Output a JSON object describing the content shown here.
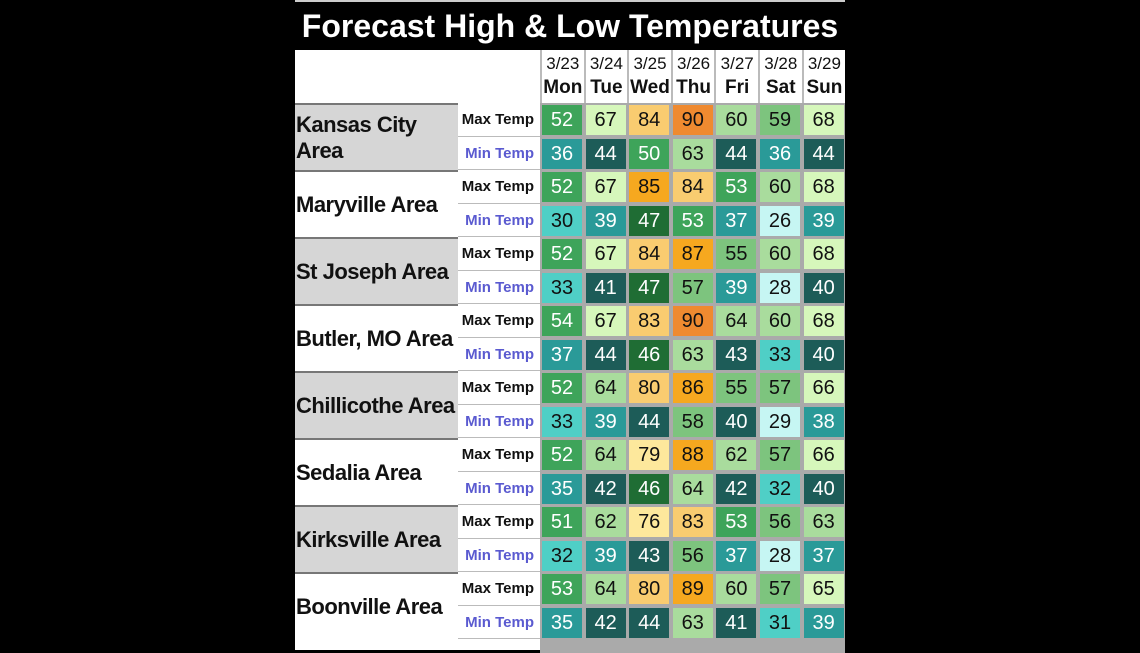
{
  "chart_data": {
    "type": "heatmap",
    "title": "Forecast High & Low Temperatures",
    "columns": [
      {
        "date": "3/23",
        "day": "Mon"
      },
      {
        "date": "3/24",
        "day": "Tue"
      },
      {
        "date": "3/25",
        "day": "Wed"
      },
      {
        "date": "3/26",
        "day": "Thu"
      },
      {
        "date": "3/27",
        "day": "Fri"
      },
      {
        "date": "3/28",
        "day": "Sat"
      },
      {
        "date": "3/29",
        "day": "Sun"
      }
    ],
    "row_labels": {
      "max": "Max Temp",
      "min": "Min Temp"
    },
    "areas": [
      {
        "name": "Kansas City Area",
        "max": [
          52,
          67,
          84,
          90,
          60,
          59,
          68
        ],
        "min": [
          36,
          44,
          50,
          63,
          44,
          36,
          44
        ]
      },
      {
        "name": "Maryville Area",
        "max": [
          52,
          67,
          85,
          84,
          53,
          60,
          68
        ],
        "min": [
          30,
          39,
          47,
          53,
          37,
          26,
          39
        ]
      },
      {
        "name": "St Joseph Area",
        "max": [
          52,
          67,
          84,
          87,
          55,
          60,
          68
        ],
        "min": [
          33,
          41,
          47,
          57,
          39,
          28,
          40
        ]
      },
      {
        "name": "Butler, MO Area",
        "max": [
          54,
          67,
          83,
          90,
          64,
          60,
          68
        ],
        "min": [
          37,
          44,
          46,
          63,
          43,
          33,
          40
        ]
      },
      {
        "name": "Chillicothe Area",
        "max": [
          52,
          64,
          80,
          86,
          55,
          57,
          66
        ],
        "min": [
          33,
          39,
          44,
          58,
          40,
          29,
          38
        ]
      },
      {
        "name": "Sedalia Area",
        "max": [
          52,
          64,
          79,
          88,
          62,
          57,
          66
        ],
        "min": [
          35,
          42,
          46,
          64,
          42,
          32,
          40
        ]
      },
      {
        "name": "Kirksville Area",
        "max": [
          51,
          62,
          76,
          83,
          53,
          56,
          63
        ],
        "min": [
          32,
          39,
          43,
          56,
          37,
          28,
          37
        ]
      },
      {
        "name": "Boonville Area",
        "max": [
          53,
          64,
          80,
          89,
          60,
          57,
          65
        ],
        "min": [
          35,
          42,
          44,
          63,
          41,
          31,
          39
        ]
      }
    ],
    "color_scale": [
      {
        "upto": 29,
        "bg": "#c6f6f3",
        "fg": "#111"
      },
      {
        "upto": 33,
        "bg": "#4fcfc6",
        "fg": "#111"
      },
      {
        "upto": 39,
        "bg": "#2a9a98",
        "fg": "#fff"
      },
      {
        "upto": 45,
        "bg": "#1d5c58",
        "fg": "#fff"
      },
      {
        "upto": 49,
        "bg": "#1f6d34",
        "fg": "#fff"
      },
      {
        "upto": 54,
        "bg": "#3ea45a",
        "fg": "#fff"
      },
      {
        "upto": 59,
        "bg": "#7dc47e",
        "fg": "#111"
      },
      {
        "upto": 64,
        "bg": "#a9dc9d",
        "fg": "#111"
      },
      {
        "upto": 72,
        "bg": "#d6f7bb",
        "fg": "#111"
      },
      {
        "upto": 79,
        "bg": "#fde89c",
        "fg": "#111"
      },
      {
        "upto": 84,
        "bg": "#f9cc70",
        "fg": "#111"
      },
      {
        "upto": 89,
        "bg": "#f6a81f",
        "fg": "#111"
      },
      {
        "upto": 200,
        "bg": "#ef8a30",
        "fg": "#111"
      }
    ]
  }
}
